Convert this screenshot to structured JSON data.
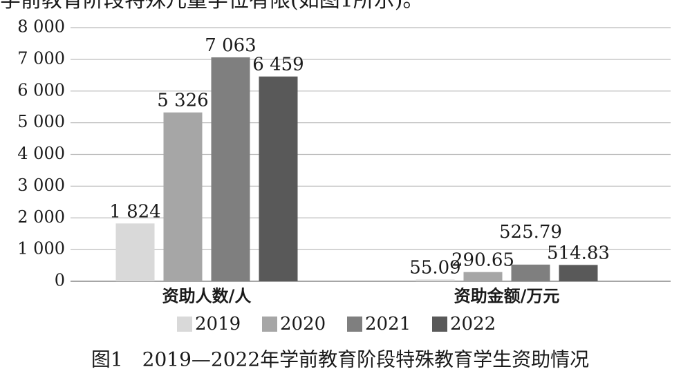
{
  "intro": "学前教育阶段特殊儿童学位有限(如图1所示)。",
  "chart_data": {
    "type": "bar",
    "caption": "图1　2019—2022年学前教育阶段特殊教育学生资助情况",
    "categories": [
      "资助人数/人",
      "资助金额/万元"
    ],
    "series": [
      {
        "name": "2019",
        "color": "#d9d9d9",
        "values": [
          1824,
          55.09
        ],
        "value_labels": [
          "1 824",
          "55.09"
        ]
      },
      {
        "name": "2020",
        "color": "#a6a6a6",
        "values": [
          5326,
          290.65
        ],
        "value_labels": [
          "5 326",
          "290.65"
        ]
      },
      {
        "name": "2021",
        "color": "#7f7f7f",
        "values": [
          7063,
          525.79
        ],
        "value_labels": [
          "7 063",
          "525.79"
        ]
      },
      {
        "name": "2022",
        "color": "#595959",
        "values": [
          6459,
          514.83
        ],
        "value_labels": [
          "6 459",
          "514.83"
        ]
      }
    ],
    "ylim": [
      0,
      8000
    ],
    "yticks": [
      0,
      {
        "value": 1000,
        "label": "1 000"
      },
      {
        "value": 2000,
        "label": "2 000"
      },
      {
        "value": 3000,
        "label": "3 000"
      },
      {
        "value": 4000,
        "label": "4 000"
      },
      {
        "value": 5000,
        "label": "5 000"
      },
      {
        "value": 6000,
        "label": "6 000"
      },
      {
        "value": 7000,
        "label": "7 000"
      },
      {
        "value": 8000,
        "label": "8 000"
      }
    ],
    "grid": true
  }
}
